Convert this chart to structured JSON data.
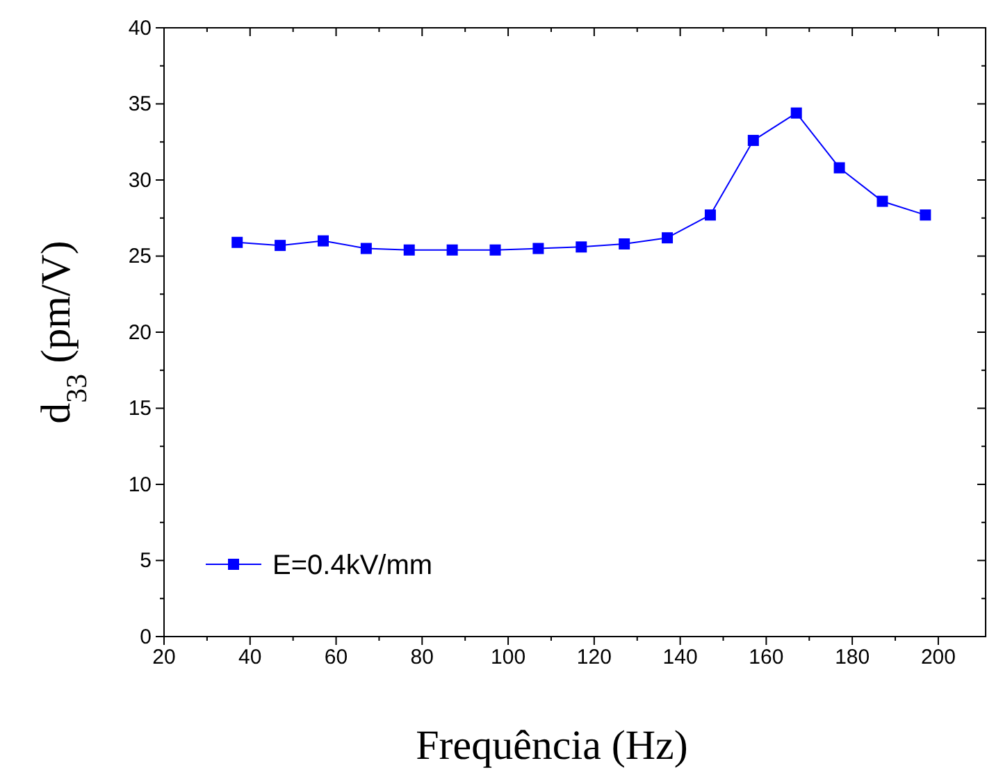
{
  "chart_data": {
    "type": "line",
    "xlabel": "Frequência (Hz)",
    "ylabel": "d$_{33}$ (pm/V)",
    "x": [
      37,
      47,
      57,
      67,
      77,
      87,
      97,
      107,
      117,
      127,
      137,
      147,
      157,
      167,
      177,
      187,
      197
    ],
    "series": [
      {
        "name": "E=0.4kV/mm",
        "color": "#0000ff",
        "values": [
          25.9,
          25.7,
          26.0,
          25.5,
          25.4,
          25.4,
          25.4,
          25.5,
          25.6,
          25.8,
          26.2,
          27.7,
          32.6,
          34.4,
          30.8,
          28.6,
          27.7
        ]
      }
    ],
    "xlim": [
      20,
      211
    ],
    "ylim": [
      0,
      40
    ],
    "xticks": [
      20,
      {
        "value": 30,
        "label": null
      },
      40,
      {
        "value": 50,
        "label": null
      },
      60,
      {
        "value": 70,
        "label": null
      },
      80,
      {
        "value": 90,
        "label": null
      },
      100,
      {
        "value": 110,
        "label": null
      },
      120,
      {
        "value": 130,
        "label": null
      },
      140,
      {
        "value": 150,
        "label": null
      },
      160,
      {
        "value": 170,
        "label": null
      },
      180,
      {
        "value": 190,
        "label": null
      },
      200
    ],
    "yticks": [
      0,
      {
        "value": 2.5,
        "label": null
      },
      5,
      {
        "value": 7.5,
        "label": null
      },
      10,
      {
        "value": 12.5,
        "label": null
      },
      15,
      {
        "value": 17.5,
        "label": null
      },
      20,
      {
        "value": 22.5,
        "label": null
      },
      25,
      {
        "value": 27.5,
        "label": null
      },
      30,
      {
        "value": 32.5,
        "label": null
      },
      35,
      {
        "value": 37.5,
        "label": null
      },
      40
    ],
    "marker": "square",
    "line_style": "solid",
    "legend": "bottom left",
    "grid": false
  }
}
